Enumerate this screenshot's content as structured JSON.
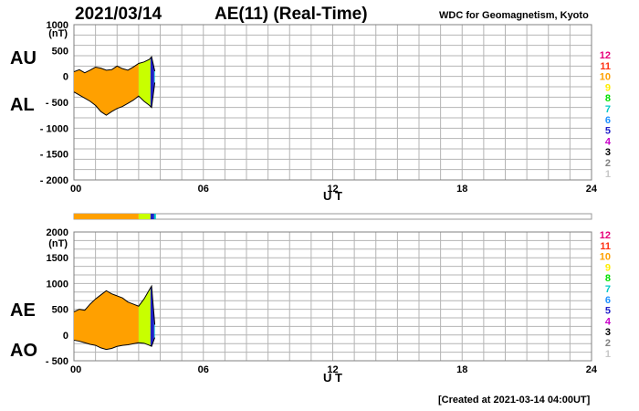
{
  "header": {
    "date": "2021/03/14",
    "title": "AE(11) (Real-Time)",
    "institution": "WDC for Geomagnetism, Kyoto"
  },
  "footer": {
    "created": "[Created at 2021-03-14 04:00UT]"
  },
  "colors": {
    "hour_scale": [
      "#cccccc",
      "#c0c0c0",
      "#8c8c8c",
      "#000000",
      "#c800c8",
      "#2020c8",
      "#1e90ff",
      "#00c8c8",
      "#32cd32",
      "#c8ff00",
      "#ffee00",
      "#ffa000",
      "#ff3214",
      "#ff1493"
    ],
    "legend_label_colors": [
      "#c8c8c8",
      "#808080",
      "#000000",
      "#c800c8",
      "#2020c8",
      "#1e90ff",
      "#00c8c8",
      "#00e000",
      "#ffee00",
      "#ffa000",
      "#ff3214",
      "#e6007a"
    ]
  },
  "chart_data": [
    {
      "type": "area",
      "panel": "upper",
      "series_labels": [
        "AU",
        "AL"
      ],
      "ylabel_unit": "(nT)",
      "y_tick_labels": [
        "1000",
        "500",
        "0",
        "- 500",
        "- 1000",
        "- 1500",
        "- 2000"
      ],
      "y_ticks": [
        1000,
        500,
        0,
        -500,
        -1000,
        -1500,
        -2000
      ],
      "ylim": [
        -2000,
        1000
      ],
      "xlabel": "U T",
      "x_tick_labels": [
        "00",
        "06",
        "12",
        "18",
        "24"
      ],
      "x_ticks": [
        0,
        6,
        12,
        18,
        24
      ],
      "xlim": [
        0,
        24
      ],
      "grid": true,
      "legend_labels": [
        "12",
        "11",
        "10",
        "9",
        "8",
        "7",
        "6",
        "5",
        "4",
        "3",
        "2",
        "1"
      ],
      "legend_placement": "right",
      "x": [
        0,
        0.25,
        0.5,
        0.75,
        1,
        1.25,
        1.5,
        1.75,
        2,
        2.25,
        2.5,
        2.75,
        3,
        3.25,
        3.5,
        3.6,
        3.75
      ],
      "series": [
        {
          "name": "AU",
          "values": [
            90,
            130,
            70,
            120,
            180,
            160,
            120,
            130,
            200,
            150,
            120,
            180,
            250,
            280,
            330,
            380,
            100
          ]
        },
        {
          "name": "AL",
          "values": [
            -300,
            -360,
            -420,
            -480,
            -560,
            -680,
            -750,
            -680,
            -620,
            -580,
            -520,
            -460,
            -380,
            -480,
            -560,
            -600,
            -120
          ]
        }
      ],
      "station_count_fill": [
        {
          "from": 0,
          "to": 3.0,
          "stations": 11
        },
        {
          "from": 3.0,
          "to": 3.55,
          "stations": 9
        },
        {
          "from": 3.55,
          "to": 3.72,
          "stations": 5
        },
        {
          "from": 3.72,
          "to": 3.8,
          "stations": 7
        }
      ]
    },
    {
      "type": "area",
      "panel": "lower",
      "series_labels": [
        "AE",
        "AO"
      ],
      "ylabel_unit": "(nT)",
      "y_tick_labels": [
        "2000",
        "1500",
        "1000",
        "500",
        "0",
        "- 500"
      ],
      "y_ticks": [
        2000,
        1500,
        1000,
        500,
        0,
        -500
      ],
      "ylim": [
        -500,
        2000
      ],
      "xlabel": "U T",
      "x_tick_labels": [
        "00",
        "06",
        "12",
        "18",
        "24"
      ],
      "x_ticks": [
        0,
        6,
        12,
        18,
        24
      ],
      "xlim": [
        0,
        24
      ],
      "grid": true,
      "legend_labels": [
        "12",
        "11",
        "10",
        "9",
        "8",
        "7",
        "6",
        "5",
        "4",
        "3",
        "2",
        "1"
      ],
      "legend_placement": "right",
      "x": [
        0,
        0.25,
        0.5,
        0.75,
        1,
        1.25,
        1.5,
        1.75,
        2,
        2.25,
        2.5,
        2.75,
        3,
        3.25,
        3.5,
        3.6,
        3.75
      ],
      "series": [
        {
          "name": "AE",
          "values": [
            450,
            500,
            480,
            600,
            700,
            780,
            860,
            800,
            760,
            720,
            640,
            600,
            560,
            700,
            880,
            950,
            200
          ]
        },
        {
          "name": "AO",
          "values": [
            -100,
            -120,
            -150,
            -180,
            -200,
            -250,
            -280,
            -260,
            -220,
            -200,
            -190,
            -170,
            -150,
            -160,
            -200,
            -220,
            -50
          ]
        }
      ],
      "station_count_fill": [
        {
          "from": 0,
          "to": 3.0,
          "stations": 11
        },
        {
          "from": 3.0,
          "to": 3.55,
          "stations": 9
        },
        {
          "from": 3.55,
          "to": 3.72,
          "stations": 5
        },
        {
          "from": 3.72,
          "to": 3.8,
          "stations": 7
        }
      ]
    }
  ],
  "hour_strip": [
    {
      "from": 0,
      "to": 3.0,
      "stations": 11
    },
    {
      "from": 3.0,
      "to": 3.55,
      "stations": 9
    },
    {
      "from": 3.55,
      "to": 3.72,
      "stations": 5
    },
    {
      "from": 3.72,
      "to": 3.8,
      "stations": 7
    }
  ]
}
